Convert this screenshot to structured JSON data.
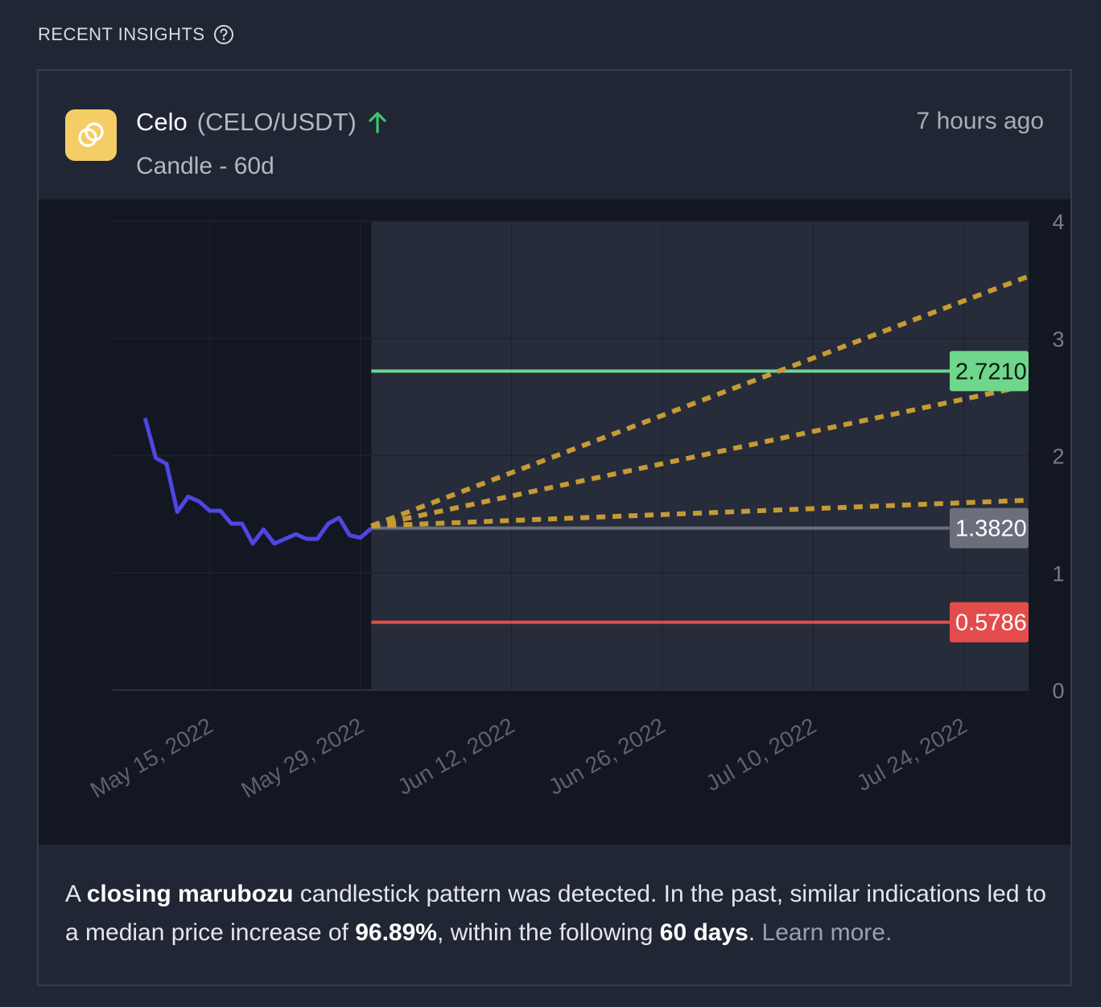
{
  "section": {
    "title": "RECENT INSIGHTS",
    "help_icon": "question-circle-icon"
  },
  "insight": {
    "coin_name": "Celo",
    "pair": "(CELO/USDT)",
    "direction_icon": "arrow-up-icon",
    "direction_color": "#3ec46d",
    "logo_icon": "celo-rings-icon",
    "logo_color": "#f5cd66",
    "subtitle": "Candle - 60d",
    "timestamp": "7 hours ago"
  },
  "description": {
    "p1": "A ",
    "b1": "closing marubozu",
    "p2": " candlestick pattern was detected. In the past, similar indications led to a median price increase of ",
    "b2": "96.89%",
    "p3": ", within the following ",
    "b3": "60 days",
    "p4": ". ",
    "learn_more": "Learn more."
  },
  "chart_data": {
    "type": "line",
    "title": "",
    "xlabel": "",
    "ylabel": "",
    "ylim": [
      0,
      4
    ],
    "y_ticks": [
      "0",
      "1",
      "2",
      "3",
      "4"
    ],
    "x_ticks": [
      {
        "label": "May 15, 2022",
        "date": "2022-05-15"
      },
      {
        "label": "May 29, 2022",
        "date": "2022-05-29"
      },
      {
        "label": "Jun 12, 2022",
        "date": "2022-06-12"
      },
      {
        "label": "Jun 26, 2022",
        "date": "2022-06-26"
      },
      {
        "label": "Jul 10, 2022",
        "date": "2022-07-10"
      },
      {
        "label": "Jul 24, 2022",
        "date": "2022-07-24"
      }
    ],
    "xlim": [
      "2022-05-06",
      "2022-07-30"
    ],
    "projection_start": "2022-05-30",
    "price_color": "#4f46e5",
    "price_series": [
      {
        "x": "2022-05-09",
        "y": 2.32
      },
      {
        "x": "2022-05-10",
        "y": 1.98
      },
      {
        "x": "2022-05-11",
        "y": 1.93
      },
      {
        "x": "2022-05-12",
        "y": 1.52
      },
      {
        "x": "2022-05-13",
        "y": 1.65
      },
      {
        "x": "2022-05-14",
        "y": 1.61
      },
      {
        "x": "2022-05-15",
        "y": 1.53
      },
      {
        "x": "2022-05-16",
        "y": 1.53
      },
      {
        "x": "2022-05-17",
        "y": 1.42
      },
      {
        "x": "2022-05-18",
        "y": 1.42
      },
      {
        "x": "2022-05-19",
        "y": 1.25
      },
      {
        "x": "2022-05-20",
        "y": 1.37
      },
      {
        "x": "2022-05-21",
        "y": 1.25
      },
      {
        "x": "2022-05-22",
        "y": 1.29
      },
      {
        "x": "2022-05-23",
        "y": 1.33
      },
      {
        "x": "2022-05-24",
        "y": 1.29
      },
      {
        "x": "2022-05-25",
        "y": 1.29
      },
      {
        "x": "2022-05-26",
        "y": 1.42
      },
      {
        "x": "2022-05-27",
        "y": 1.47
      },
      {
        "x": "2022-05-28",
        "y": 1.32
      },
      {
        "x": "2022-05-29",
        "y": 1.3
      },
      {
        "x": "2022-05-30",
        "y": 1.38
      }
    ],
    "levels": [
      {
        "value": 2.721,
        "label": "2.7210",
        "color": "#6fd68c"
      },
      {
        "value": 1.382,
        "label": "1.3820",
        "color": "#6b6f7c"
      },
      {
        "value": 0.5786,
        "label": "0.5786",
        "color": "#e44c4c"
      }
    ],
    "projections_color": "#c69a34",
    "projections": [
      {
        "start": {
          "x": "2022-05-30",
          "y": 1.4
        },
        "end": {
          "x": "2022-07-30",
          "y": 3.53
        }
      },
      {
        "start": {
          "x": "2022-05-30",
          "y": 1.4
        },
        "end": {
          "x": "2022-07-30",
          "y": 2.6
        }
      },
      {
        "start": {
          "x": "2022-05-30",
          "y": 1.4
        },
        "end": {
          "x": "2022-07-30",
          "y": 1.62
        }
      }
    ]
  }
}
